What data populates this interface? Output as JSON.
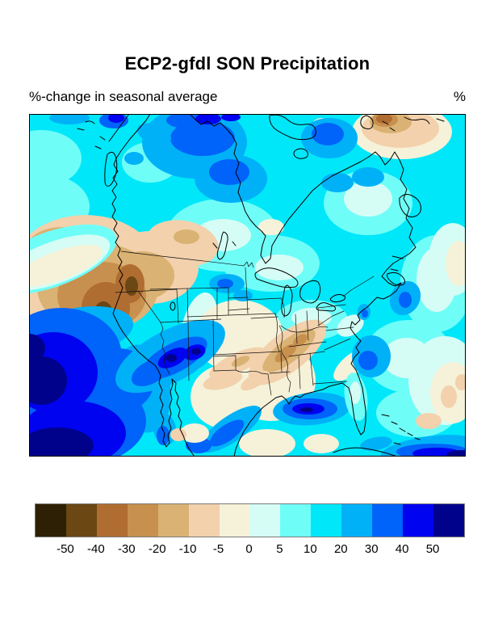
{
  "header": {
    "title": "ECP2-gfdl SON Precipitation",
    "subtitle_left": "%-change in seasonal average",
    "units_label": "%"
  },
  "colorbar": {
    "labels": [
      "-50",
      "-40",
      "-30",
      "-20",
      "-10",
      "-5",
      "0",
      "5",
      "10",
      "20",
      "30",
      "40",
      "50"
    ],
    "colors": [
      "#2e2004",
      "#6b4714",
      "#b06d31",
      "#c8904e",
      "#dab273",
      "#f2d1ac",
      "#f5f2d9",
      "#d5fdf5",
      "#6ffdf8",
      "#00e7f9",
      "#00b1f8",
      "#0063fa",
      "#0003f0",
      "#00028c"
    ],
    "border_color": "#7a7a7a"
  },
  "map": {
    "region_shown": "North America",
    "coastline_color": "#000000",
    "frame_color": "#000000"
  },
  "chart_data": {
    "type": "filled-contour-map",
    "title": "ECP2-gfdl SON Precipitation",
    "subtitle": "%-change in seasonal average",
    "units": "%",
    "region": "North America (Canada, USA, Mexico and surrounding oceans)",
    "contour_levels": [
      -50,
      -40,
      -30,
      -20,
      -10,
      -5,
      0,
      5,
      10,
      20,
      30,
      40,
      50
    ],
    "palette_hex": [
      "#2e2004",
      "#6b4714",
      "#b06d31",
      "#c8904e",
      "#dab273",
      "#f2d1ac",
      "#f5f2d9",
      "#d5fdf5",
      "#6ffdf8",
      "#00e7f9",
      "#00b1f8",
      "#0063fa",
      "#0003f0",
      "#00028c"
    ],
    "legend_position": "bottom horizontal colorbar",
    "visual_summary": [
      "Broad 5-30% increases (cyan/blue shades) over most of Canada and the northern and eastern oceans",
      "30-50% increase patches over north-central Canada and north of Hudson Bay",
      "Strong decreases (-10 to -50%, browns) over the Pacific Northwest, Great Basin, California and Rockies",
      "Decreases of -5 to -30% along the lower Mississippi valley and mid-South states",
      "Greater than 50% increases (dark navy) over the Pacific Ocean southwest of Baja California",
      "20-50% increase band across Arizona/New Mexico and over the northwest Gulf of Mexico",
      "Drying patch (tan/brown) near the northeast corner of the map and scattered tan patches in the subtropical Atlantic"
    ]
  }
}
